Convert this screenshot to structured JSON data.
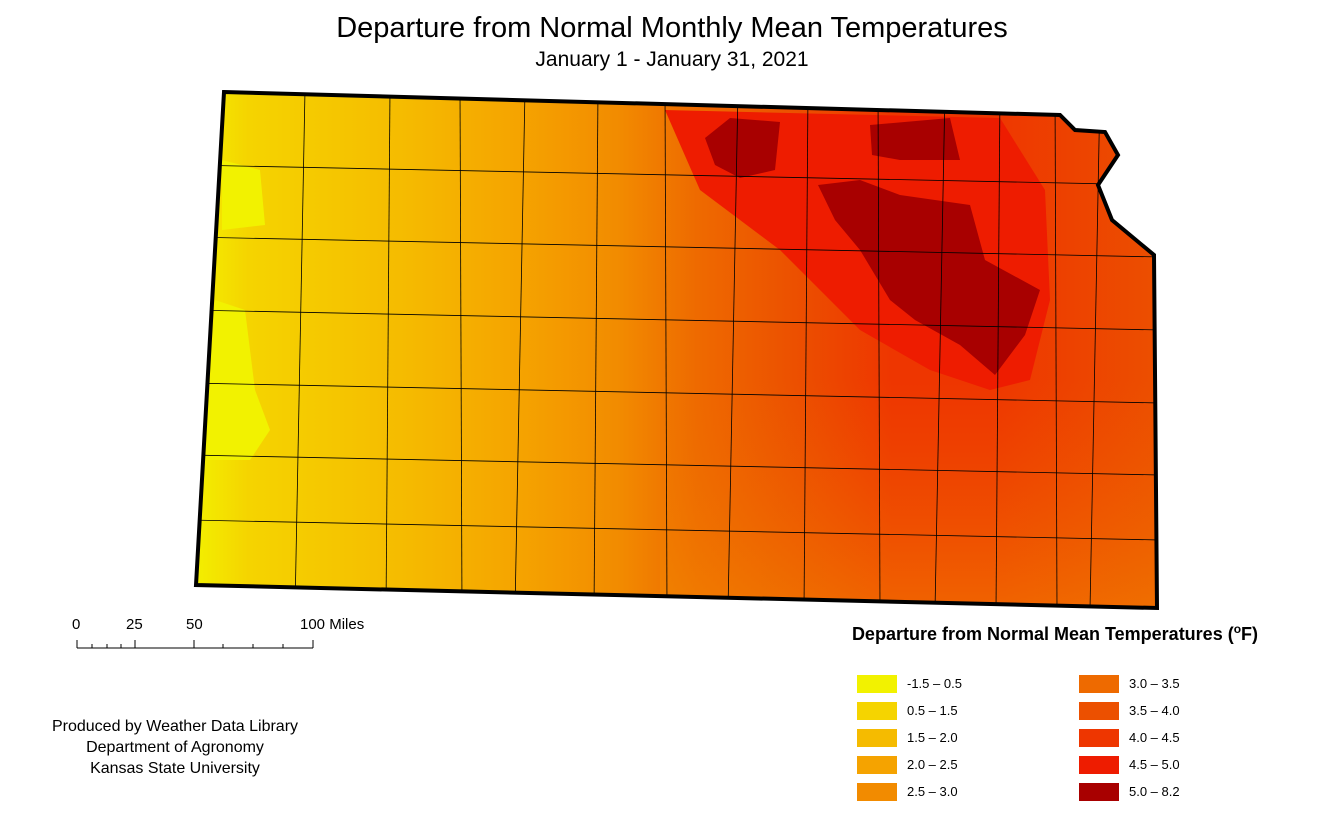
{
  "title": "Departure from Normal Monthly Mean Temperatures",
  "subtitle": "January 1 - January 31, 2021",
  "scale": {
    "ticks": [
      "0",
      "25",
      "50",
      "100 Miles"
    ]
  },
  "credits": [
    "Produced by Weather Data Library",
    "Department of Agronomy",
    "Kansas State University"
  ],
  "legend": {
    "title": "Departure from Normal Mean Temperatures (",
    "title_unit_sup": "o",
    "title_unit": "F)",
    "classes": [
      {
        "label": "-1.5 – 0.5",
        "color": "#f2f200"
      },
      {
        "label": "0.5 – 1.5",
        "color": "#f5d400"
      },
      {
        "label": "1.5 – 2.0",
        "color": "#f5bb00"
      },
      {
        "label": "2.0 – 2.5",
        "color": "#f5a300"
      },
      {
        "label": "2.5 – 3.0",
        "color": "#f28b00"
      },
      {
        "label": "3.0 – 3.5",
        "color": "#ee6a00"
      },
      {
        "label": "3.5 – 4.0",
        "color": "#ec5000"
      },
      {
        "label": "4.0 – 4.5",
        "color": "#ee3600"
      },
      {
        "label": "4.5 – 5.0",
        "color": "#ee1c00"
      },
      {
        "label": "5.0 – 8.2",
        "color": "#a80000"
      }
    ]
  },
  "map": {
    "region": "Kansas",
    "border_color": "#000000"
  }
}
